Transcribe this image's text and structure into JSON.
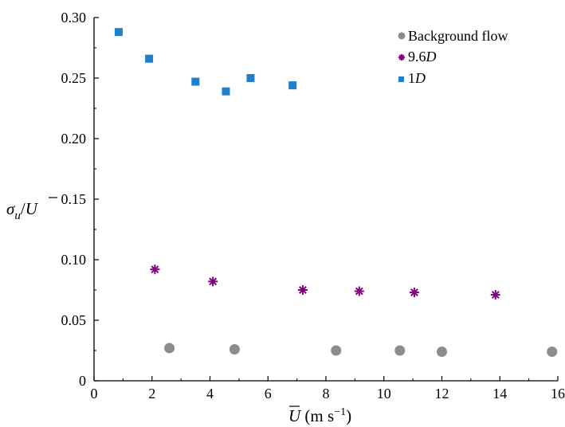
{
  "chart_data": {
    "type": "scatter",
    "xlim": [
      0,
      16
    ],
    "ylim": [
      0,
      0.3
    ],
    "x_ticks": [
      0,
      2,
      4,
      6,
      8,
      10,
      12,
      14,
      16
    ],
    "x_tick_labels": [
      "0",
      "2",
      "4",
      "6",
      "8",
      "10",
      "12",
      "14",
      "16"
    ],
    "y_ticks": [
      0,
      0.05,
      0.1,
      0.15,
      0.2,
      0.25,
      0.3
    ],
    "y_tick_labels": [
      "0",
      "0.05",
      "0.10",
      "0.15",
      "0.20",
      "0.25",
      "0.30"
    ],
    "xlabel": {
      "symbol": "U",
      "rest": " (m s",
      "exp": "−1",
      "close": ")"
    },
    "ylabel": {
      "sigma": "σ",
      "sub": "u",
      "slash": "/",
      "symbol": "U"
    },
    "grid": false,
    "legend_position": "top-right",
    "series": [
      {
        "name": "Background flow",
        "marker": "circle",
        "color": "#8c8c8c",
        "x": [
          2.6,
          4.85,
          8.35,
          10.55,
          12.0,
          15.8
        ],
        "y": [
          0.027,
          0.026,
          0.025,
          0.025,
          0.024,
          0.024
        ]
      },
      {
        "name": "9.6D",
        "name_parts": {
          "num": "9.6",
          "sym": "D"
        },
        "marker": "asterisk",
        "color": "#800080",
        "x": [
          2.1,
          4.1,
          7.2,
          9.15,
          11.05,
          13.85
        ],
        "y": [
          0.092,
          0.082,
          0.075,
          0.074,
          0.073,
          0.071
        ]
      },
      {
        "name": "1D",
        "name_parts": {
          "num": "1",
          "sym": "D"
        },
        "marker": "square",
        "color": "#1f7fc9",
        "x": [
          0.85,
          1.9,
          3.5,
          4.55,
          5.4,
          6.85
        ],
        "y": [
          0.288,
          0.266,
          0.247,
          0.239,
          0.25,
          0.244
        ]
      }
    ]
  }
}
